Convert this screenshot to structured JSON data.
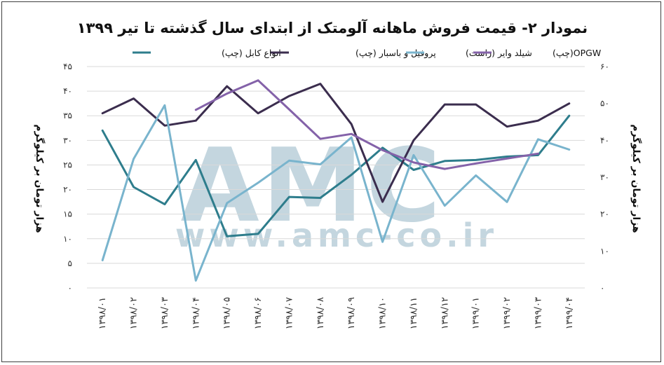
{
  "chart_data": {
    "type": "line",
    "title": "نمودار ۲- قیمت فروش ماهانه آلومتک از ابتدای سال گذشته تا تیر ۱۳۹۹",
    "watermark": {
      "logo": "AMC",
      "url": "www.amc-co.ir"
    },
    "left_axis": {
      "label": "هزار تومان بر کیلوگرم",
      "range": [
        0,
        45
      ],
      "ticks": [
        "۰",
        "۵",
        "۱۰",
        "۱۵",
        "۲۰",
        "۲۵",
        "۳۰",
        "۳۵",
        "۴۰",
        "۴۵"
      ]
    },
    "right_axis": {
      "label": "هزار تومان بر کیلوگرم",
      "range": [
        0,
        60
      ],
      "ticks": [
        "۰",
        "۱۰",
        "۲۰",
        "۳۰",
        "۴۰",
        "۵۰",
        "۶۰"
      ]
    },
    "categories": [
      "۱۳۹۸/۰۱",
      "۱۳۹۸/۰۲",
      "۱۳۹۸/۰۳",
      "۱۳۹۸/۰۴",
      "۱۳۹۸/۰۵",
      "۱۳۹۸/۰۶",
      "۱۳۹۸/۰۷",
      "۱۳۹۸/۰۸",
      "۱۳۹۸/۰۹",
      "۱۳۹۸/۱۰",
      "۱۳۹۸/۱۱",
      "۱۳۹۸/۱۲",
      "۱۳۹۹/۰۱",
      "۱۳۹۹/۰۲",
      "۱۳۹۹/۰۳",
      "۱۳۹۹/۰۴"
    ],
    "legend_position": "top",
    "grid": "horizontal",
    "series": [
      {
        "name": "انواع کابل (چپ)",
        "axis": "left",
        "color": "#2e7d8c",
        "values": [
          32,
          20.5,
          17,
          26,
          10.5,
          11,
          18.5,
          18.3,
          23,
          28.5,
          24,
          25.8,
          26,
          26.7,
          27,
          35
        ]
      },
      {
        "name": "پروفیل و باسبار (چپ)",
        "axis": "left",
        "color": "#3b2d4e",
        "values": [
          35.5,
          38.5,
          33,
          34,
          41,
          35.5,
          39,
          41.5,
          33.3,
          17.5,
          30,
          37.3,
          37.3,
          32.8,
          34,
          37.5
        ]
      },
      {
        "name": "شیلد وایر (راست)",
        "axis": "right",
        "color": "#79b4cd",
        "values": [
          7.5,
          35,
          49.5,
          2,
          23,
          28.5,
          34.5,
          33.5,
          40.8,
          12.5,
          36,
          22.3,
          30.5,
          23.3,
          40.3,
          37.5
        ]
      },
      {
        "name": "OPGW(چپ)",
        "axis": "left",
        "color": "#8462a9",
        "values": [
          null,
          null,
          null,
          36.2,
          39.5,
          42.2,
          36.3,
          30.3,
          31.3,
          28,
          25.5,
          24.2,
          25.3,
          26.3,
          27.3,
          null
        ]
      }
    ]
  }
}
